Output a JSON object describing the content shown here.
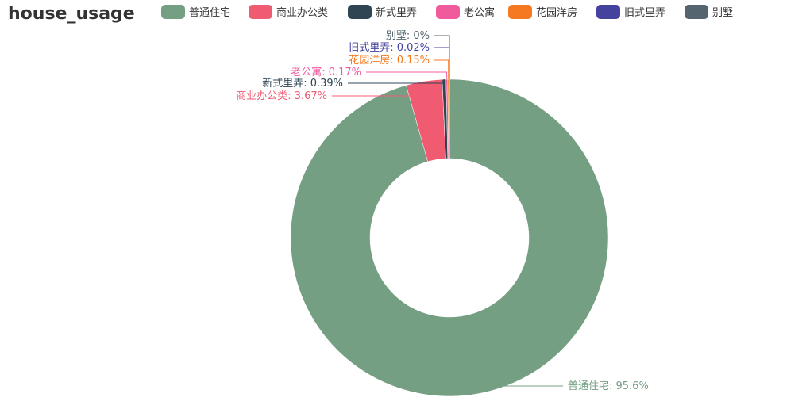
{
  "chart_data": {
    "type": "pie",
    "title": "house_usage",
    "donut": true,
    "legend_position": "top",
    "slices": [
      {
        "name": "普通住宅",
        "value": 95.6,
        "label": "普通住宅: 95.6%",
        "color": "#749f83"
      },
      {
        "name": "商业办公类",
        "value": 3.67,
        "label": "商业办公类: 3.67%",
        "color": "#f05b72"
      },
      {
        "name": "新式里弄",
        "value": 0.39,
        "label": "新式里弄: 0.39%",
        "color": "#2f4554"
      },
      {
        "name": "老公寓",
        "value": 0.17,
        "label": "老公寓: 0.17%",
        "color": "#ef5b9c"
      },
      {
        "name": "花园洋房",
        "value": 0.15,
        "label": "花园洋房: 0.15%",
        "color": "#f47920"
      },
      {
        "name": "旧式里弄",
        "value": 0.02,
        "label": "旧式里弄: 0.02%",
        "color": "#45429e"
      },
      {
        "name": "别墅",
        "value": 0.0,
        "label": "别墅: 0%",
        "color": "#546570"
      }
    ]
  }
}
